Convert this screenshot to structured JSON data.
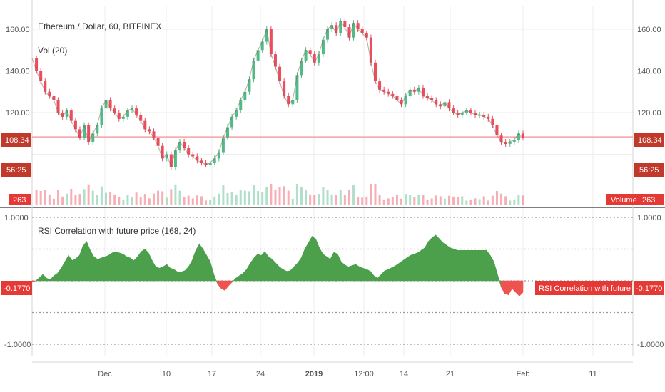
{
  "header": {
    "symbol_title": "Ethereum / Dollar, 60, BITFINEX",
    "volume_indicator": "Vol (20)",
    "rsi_indicator": "RSI Correlation with future price (168, 24)"
  },
  "price_tags": {
    "last_price": "108.34",
    "countdown": "56:25",
    "volume_value": "263",
    "volume_label": "Volume",
    "rsi_value": "-0.1770",
    "rsi_label": "RSI Correlation with future price"
  },
  "colors": {
    "up": "#53b987",
    "down": "#eb4d5c",
    "price_line": "#f4a0a0",
    "rsi_positive": "#4ca04c",
    "rsi_negative": "#ef5350",
    "tag_red": "#e53935",
    "tag_dark_red": "#c0392b",
    "grid": "#eeeeee"
  },
  "chart_data": [
    {
      "type": "line",
      "title": "Ethereum / Dollar, 60, BITFINEX",
      "y_ticks": [
        120,
        140,
        160
      ],
      "y_tick_labels": [
        "120.00",
        "140.00",
        "160.00"
      ],
      "ylim": [
        92,
        168
      ],
      "last_price": 108.34,
      "x_ticks": [
        "Dec",
        "10",
        "17",
        "24",
        "2019",
        "12:00",
        "14",
        "21",
        "Feb",
        "11"
      ],
      "series": [
        {
          "values": [
            146,
            140,
            135,
            130,
            128,
            126,
            120,
            118,
            121,
            116,
            112,
            108,
            114,
            106,
            110,
            114,
            122,
            126,
            122,
            120,
            117,
            118,
            121,
            122,
            119,
            116,
            112,
            111,
            108,
            104,
            98,
            100,
            94,
            102,
            106,
            103,
            100,
            99,
            97,
            96,
            95,
            96,
            98,
            101,
            108,
            113,
            118,
            121,
            126,
            130,
            136,
            145,
            150,
            154,
            160,
            148,
            142,
            135,
            128,
            124,
            126,
            138,
            145,
            150,
            148,
            144,
            148,
            155,
            160,
            162,
            158,
            164,
            161,
            156,
            163,
            160,
            158,
            156,
            144,
            135,
            131,
            130,
            129,
            128,
            126,
            124,
            128,
            131,
            130,
            132,
            128,
            127,
            126,
            124,
            123,
            125,
            122,
            120,
            119,
            120,
            121,
            120,
            119,
            119,
            118,
            117,
            114,
            109,
            106,
            105,
            106,
            107,
            110,
            108
          ]
        }
      ]
    },
    {
      "type": "area",
      "title": "RSI Correlation with future price (168, 24)",
      "y_tick_labels": [
        "1.0000",
        "-1.0000"
      ],
      "ylim": [
        -1,
        1
      ],
      "last_value": -0.177,
      "series": [
        {
          "values": [
            -0.02,
            0.0,
            0.05,
            0.1,
            0.04,
            0.02,
            0.08,
            0.12,
            0.2,
            0.3,
            0.4,
            0.32,
            0.35,
            0.4,
            0.55,
            0.62,
            0.48,
            0.38,
            0.34,
            0.36,
            0.38,
            0.4,
            0.44,
            0.46,
            0.44,
            0.42,
            0.38,
            0.36,
            0.32,
            0.38,
            0.46,
            0.5,
            0.44,
            0.32,
            0.22,
            0.2,
            0.22,
            0.26,
            0.2,
            0.18,
            0.14,
            0.14,
            0.16,
            0.22,
            0.32,
            0.48,
            0.58,
            0.5,
            0.4,
            0.3,
            0.1,
            -0.05,
            -0.12,
            -0.15,
            -0.08,
            -0.02,
            0.04,
            0.08,
            0.12,
            0.18,
            0.28,
            0.36,
            0.42,
            0.4,
            0.46,
            0.38,
            0.34,
            0.28,
            0.22,
            0.18,
            0.15,
            0.16,
            0.22,
            0.28,
            0.36,
            0.5,
            0.6,
            0.7,
            0.66,
            0.52,
            0.42,
            0.38,
            0.34,
            0.45,
            0.42,
            0.3,
            0.25,
            0.22,
            0.24,
            0.26,
            0.22,
            0.2,
            0.18,
            0.15,
            0.08,
            0.04,
            0.1,
            0.16,
            0.18,
            0.21,
            0.24,
            0.28,
            0.32,
            0.36,
            0.4,
            0.42,
            0.44,
            0.48,
            0.52,
            0.62,
            0.68,
            0.72,
            0.66,
            0.6,
            0.56,
            0.52,
            0.5,
            0.48,
            0.48,
            0.48,
            0.48,
            0.48,
            0.48,
            0.48,
            0.48,
            0.48,
            0.4,
            0.3,
            0.1,
            -0.1,
            -0.2,
            -0.22,
            -0.12,
            -0.18,
            -0.24,
            -0.18
          ]
        }
      ]
    }
  ]
}
